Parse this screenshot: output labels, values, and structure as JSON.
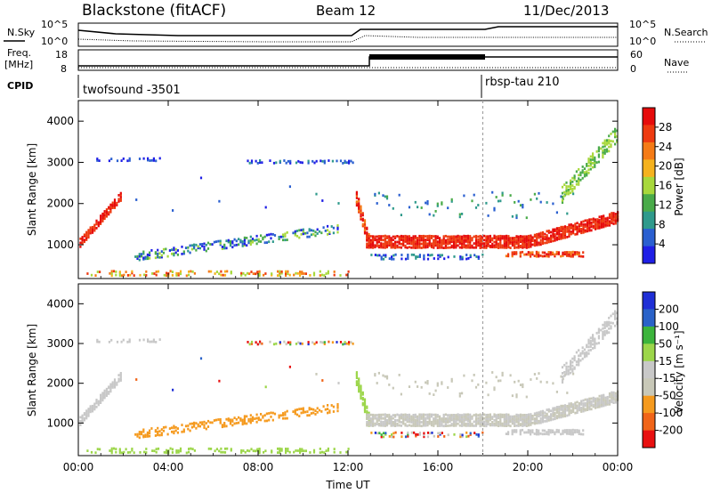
{
  "header": {
    "station": "Blackstone (fitACF)",
    "beam": "Beam 12",
    "date": "11/Dec/2013"
  },
  "summary": {
    "nsky_label": "N.Sky",
    "nsearch_label": "N.Search",
    "noise_ticks": [
      "10^5",
      "10^0"
    ],
    "freq_label_1": "Freq.",
    "freq_label_2": "[MHz]",
    "freq_ticks": [
      "18",
      "8"
    ],
    "nave_label": "Nave",
    "nave_ticks": [
      "60",
      "0"
    ],
    "cpid_label": "CPID",
    "cpid_1": "twofsound -3501",
    "cpid_2": "rbsp-tau 210"
  },
  "colors": {
    "power": [
      "#1f1fe6",
      "#2a5fd0",
      "#2f9a8c",
      "#4aab4a",
      "#a8d83c",
      "#f5b21e",
      "#f57b16",
      "#ee3a10",
      "#e60b0b"
    ],
    "velocity": [
      "#e81010",
      "#f06418",
      "#f59a1e",
      "#c8c8b8",
      "#c8c8c8",
      "#9cd64a",
      "#3cb43c",
      "#2a62c8",
      "#1f2fd6"
    ]
  },
  "chart_data": [
    {
      "type": "heatmap",
      "name": "power-panel",
      "xlabel": "",
      "ylabel": "Slant Range [km]",
      "x_ticks": [
        "00:00",
        "04:00",
        "08:00",
        "12:00",
        "16:00",
        "20:00",
        "00:00"
      ],
      "x_range_hours": [
        0,
        24
      ],
      "y_ticks": [
        1000,
        2000,
        3000,
        4000
      ],
      "y_range_km": [
        180,
        4500
      ],
      "colorbar_label": "Power [dB]",
      "colorbar_ticks": [
        "4",
        "8",
        "12",
        "16",
        "20",
        "24",
        "28"
      ],
      "colorbar_range": [
        0,
        30
      ]
    },
    {
      "type": "heatmap",
      "name": "velocity-panel",
      "xlabel": "Time UT",
      "ylabel": "Slant Range [km]",
      "x_ticks": [
        "00:00",
        "04:00",
        "08:00",
        "12:00",
        "16:00",
        "20:00",
        "00:00"
      ],
      "x_range_hours": [
        0,
        24
      ],
      "y_ticks": [
        1000,
        2000,
        3000,
        4000
      ],
      "y_range_km": [
        180,
        4500
      ],
      "colorbar_label": "Velocity [m s⁻¹]",
      "colorbar_ticks": [
        "200",
        "100",
        "50",
        "15",
        "-15",
        "-50",
        "-100",
        "-200"
      ],
      "colorbar_range": [
        -250,
        250
      ]
    }
  ]
}
